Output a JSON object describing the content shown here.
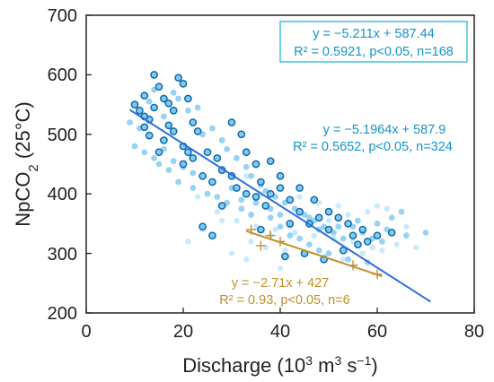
{
  "colors": {
    "blue_line": "#2a6fdb",
    "blue_text": "#1494c8",
    "cyan_box": "#22b8d8",
    "olive": "#c0902a",
    "dot_light": "#74c4f0",
    "dot_ring": "#0f6aa8",
    "dot_pale": "#bde3fa"
  },
  "chart_data": {
    "type": "scatter",
    "xlabel_main": "Discharge (10",
    "xlabel_sup1": "3",
    "xlabel_mid": " m",
    "xlabel_sup2": "3",
    "xlabel_tail": " s",
    "xlabel_sup3": "−1",
    "xlabel_end": ")",
    "ylabel_main": "NpCO",
    "ylabel_sub": "2",
    "ylabel_tail": " (25°C)",
    "xlim": [
      0,
      80
    ],
    "ylim": [
      200,
      700
    ],
    "x_ticks": [
      "0",
      "20",
      "40",
      "60",
      "80"
    ],
    "y_ticks": [
      "200",
      "300",
      "400",
      "500",
      "600",
      "700"
    ],
    "grid": false,
    "annotations": {
      "boxed_line1": "y = −5.211x + 587.44",
      "boxed_line2": "R² = 0.5921, p<0.05, n=168",
      "blue_line1": "y = −5.1964x + 587.9",
      "blue_line2": "R² = 0.5652, p<0.05, n=324",
      "olive_line1": "y = −2.71x + 427",
      "olive_line2": "R² = 0.93, p<0.05, n=6"
    },
    "regression_lines": [
      {
        "color_key": "blue_line",
        "slope": -5.1964,
        "intercept": 587.9,
        "x_range": [
          9,
          71
        ]
      },
      {
        "color_key": "olive",
        "slope": -2.71,
        "intercept": 427,
        "x_range": [
          33,
          61
        ]
      }
    ],
    "series": [
      {
        "marker": "circle-ringed",
        "points": [
          [
            10,
            550
          ],
          [
            11,
            540
          ],
          [
            12,
            565
          ],
          [
            13,
            525
          ],
          [
            14,
            600
          ],
          [
            15,
            580
          ],
          [
            16,
            560
          ],
          [
            12,
            512
          ],
          [
            14,
            545
          ],
          [
            17,
            552
          ],
          [
            18,
            540
          ],
          [
            19,
            595
          ],
          [
            20,
            585
          ],
          [
            21,
            560
          ],
          [
            22,
            520
          ],
          [
            18,
            505
          ],
          [
            16,
            490
          ],
          [
            13,
            498
          ],
          [
            15,
            470
          ],
          [
            20,
            480
          ],
          [
            22,
            460
          ],
          [
            25,
            470
          ],
          [
            27,
            460
          ],
          [
            24,
            430
          ],
          [
            26,
            420
          ],
          [
            28,
            440
          ],
          [
            30,
            430
          ],
          [
            31,
            410
          ],
          [
            33,
            400
          ],
          [
            35,
            395
          ],
          [
            37,
            380
          ],
          [
            36,
            420
          ],
          [
            38,
            400
          ],
          [
            40,
            410
          ],
          [
            42,
            390
          ],
          [
            44,
            370
          ],
          [
            46,
            350
          ],
          [
            48,
            360
          ],
          [
            50,
            340
          ],
          [
            52,
            360
          ],
          [
            55,
            330
          ],
          [
            58,
            320
          ],
          [
            60,
            330
          ],
          [
            63,
            335
          ],
          [
            30,
            520
          ],
          [
            32,
            500
          ],
          [
            33,
            470
          ],
          [
            35,
            450
          ],
          [
            38,
            455
          ],
          [
            40,
            430
          ],
          [
            44,
            410
          ],
          [
            47,
            390
          ],
          [
            50,
            370
          ],
          [
            54,
            350
          ],
          [
            57,
            340
          ],
          [
            24,
            345
          ],
          [
            26,
            330
          ],
          [
            28,
            380
          ],
          [
            41,
            295
          ],
          [
            45,
            300
          ],
          [
            49,
            290
          ],
          [
            53,
            305
          ],
          [
            56,
            315
          ],
          [
            42,
            350
          ],
          [
            36,
            340
          ],
          [
            20,
            450
          ],
          [
            23,
            505
          ],
          [
            17,
            515
          ],
          [
            12,
            530
          ],
          [
            21,
            470
          ]
        ]
      },
      {
        "marker": "circle-light",
        "points": [
          [
            9,
            520
          ],
          [
            11,
            510
          ],
          [
            13,
            555
          ],
          [
            14,
            575
          ],
          [
            16,
            530
          ],
          [
            18,
            570
          ],
          [
            19,
            560
          ],
          [
            21,
            540
          ],
          [
            23,
            545
          ],
          [
            24,
            500
          ],
          [
            26,
            510
          ],
          [
            28,
            490
          ],
          [
            29,
            475
          ],
          [
            31,
            460
          ],
          [
            33,
            445
          ],
          [
            34,
            430
          ],
          [
            36,
            415
          ],
          [
            37,
            405
          ],
          [
            39,
            395
          ],
          [
            41,
            385
          ],
          [
            43,
            375
          ],
          [
            45,
            365
          ],
          [
            47,
            355
          ],
          [
            49,
            345
          ],
          [
            51,
            335
          ],
          [
            53,
            325
          ],
          [
            55,
            345
          ],
          [
            57,
            335
          ],
          [
            59,
            325
          ],
          [
            61,
            320
          ],
          [
            63,
            360
          ],
          [
            65,
            370
          ],
          [
            15,
            450
          ],
          [
            17,
            440
          ],
          [
            19,
            420
          ],
          [
            22,
            410
          ],
          [
            25,
            400
          ],
          [
            27,
            395
          ],
          [
            29,
            385
          ],
          [
            32,
            375
          ],
          [
            34,
            365
          ],
          [
            38,
            360
          ],
          [
            40,
            345
          ],
          [
            42,
            330
          ],
          [
            44,
            325
          ],
          [
            46,
            315
          ],
          [
            48,
            305
          ],
          [
            50,
            300
          ],
          [
            54,
            290
          ],
          [
            58,
            285
          ],
          [
            30,
            410
          ],
          [
            32,
            390
          ],
          [
            35,
            385
          ],
          [
            38,
            375
          ],
          [
            40,
            365
          ],
          [
            46,
            360
          ],
          [
            48,
            340
          ],
          [
            52,
            345
          ],
          [
            56,
            355
          ],
          [
            60,
            350
          ],
          [
            62,
            340
          ],
          [
            66,
            330
          ],
          [
            70,
            335
          ],
          [
            10,
            480
          ],
          [
            12,
            470
          ],
          [
            14,
            460
          ],
          [
            16,
            475
          ],
          [
            18,
            455
          ],
          [
            20,
            445
          ],
          [
            22,
            435
          ]
        ]
      },
      {
        "marker": "circle-pale",
        "points": [
          [
            23,
            395
          ],
          [
            27,
            370
          ],
          [
            31,
            355
          ],
          [
            35,
            345
          ],
          [
            39,
            340
          ],
          [
            43,
            335
          ],
          [
            47,
            330
          ],
          [
            51,
            325
          ],
          [
            55,
            320
          ],
          [
            59,
            310
          ],
          [
            37,
            310
          ],
          [
            41,
            305
          ],
          [
            45,
            300
          ],
          [
            49,
            295
          ],
          [
            53,
            290
          ],
          [
            30,
            300
          ],
          [
            34,
            320
          ],
          [
            38,
            330
          ],
          [
            42,
            345
          ],
          [
            46,
            350
          ],
          [
            50,
            355
          ],
          [
            54,
            365
          ],
          [
            58,
            370
          ],
          [
            62,
            375
          ],
          [
            66,
            345
          ],
          [
            28,
            355
          ],
          [
            24,
            340
          ],
          [
            21,
            320
          ],
          [
            33,
            290
          ],
          [
            40,
            275
          ],
          [
            57,
            300
          ],
          [
            61,
            305
          ],
          [
            64,
            315
          ],
          [
            68,
            310
          ],
          [
            52,
            380
          ],
          [
            48,
            385
          ],
          [
            44,
            395
          ],
          [
            60,
            380
          ],
          [
            36,
            400
          ],
          [
            33,
            430
          ]
        ]
      },
      {
        "marker": "plus",
        "points": [
          [
            34,
            340
          ],
          [
            36,
            313
          ],
          [
            38,
            330
          ],
          [
            40,
            320
          ],
          [
            55,
            280
          ],
          [
            60,
            265
          ]
        ]
      }
    ]
  }
}
